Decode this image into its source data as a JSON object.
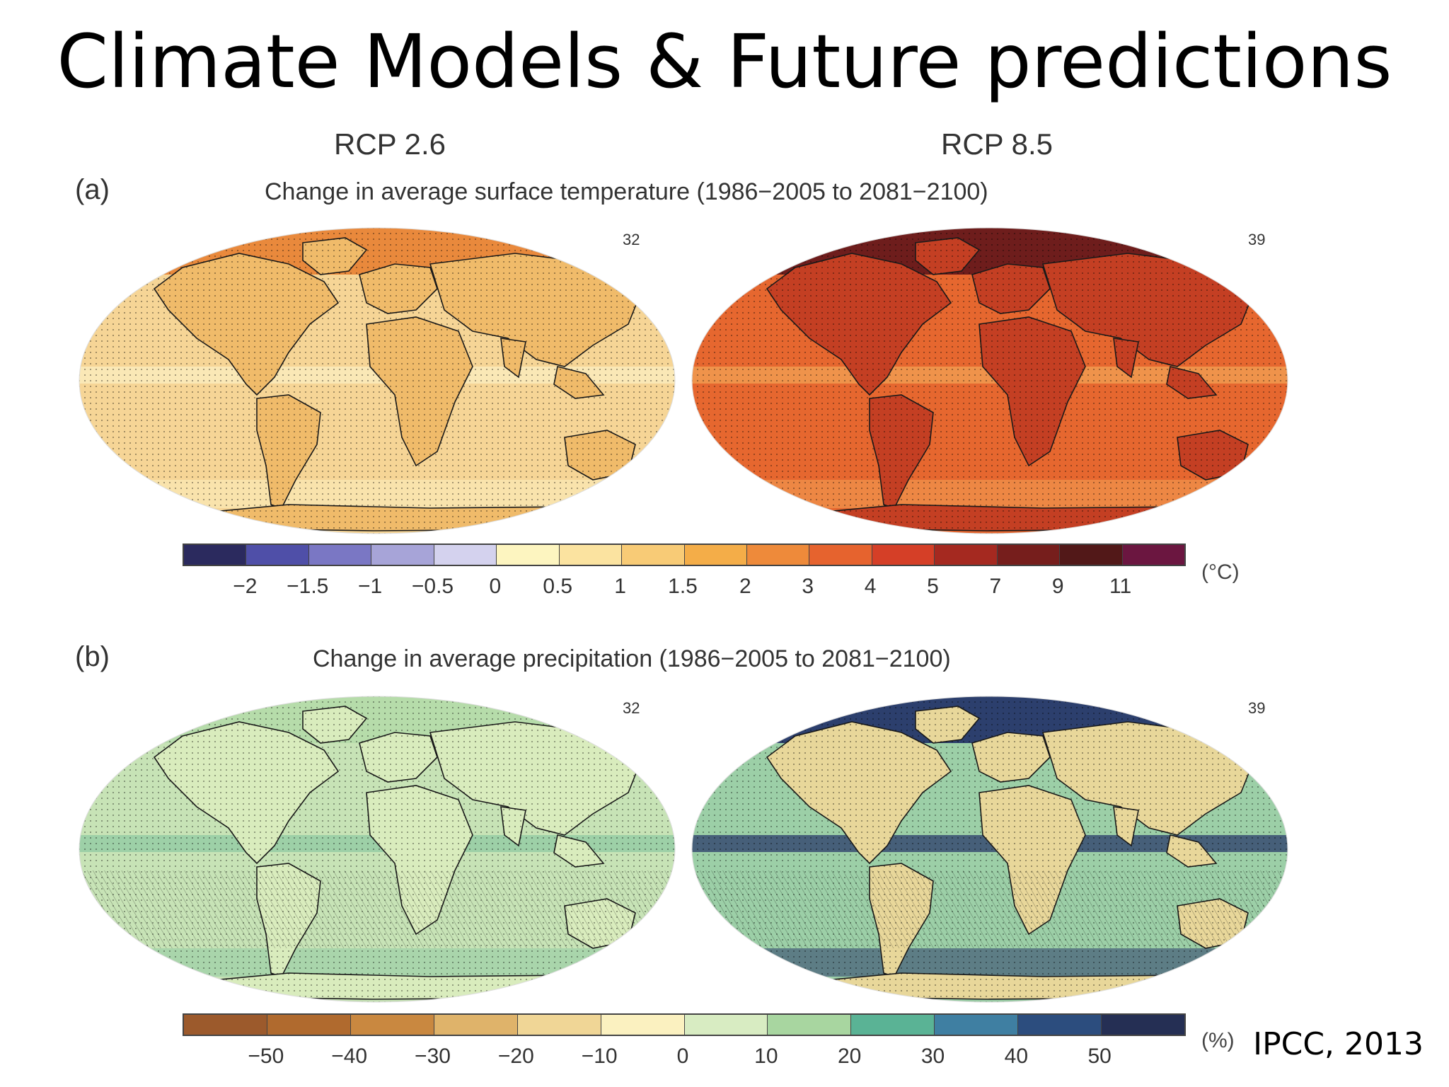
{
  "slide": {
    "title": "Climate Models & Future predictions",
    "credit": "IPCC, 2013"
  },
  "columns": [
    "RCP 2.6",
    "RCP 8.5"
  ],
  "panel_a": {
    "letter": "(a)",
    "title": "Change in average surface temperature (1986−2005 to 2081−2100)",
    "model_counts": [
      "32",
      "39"
    ],
    "unit": "(°C)",
    "colorbar": {
      "colors": [
        "#2b2a5e",
        "#4f4fa8",
        "#7a77c4",
        "#a7a4d8",
        "#d4d2ee",
        "#fdf5c0",
        "#fbe3a0",
        "#f8cb76",
        "#f4ad48",
        "#ee8a3a",
        "#e6632e",
        "#d53f27",
        "#a52920",
        "#761e1c",
        "#521818",
        "#6b1640"
      ],
      "tick_labels": [
        "−2",
        "−1.5",
        "−1",
        "−0.5",
        "0",
        "0.5",
        "1",
        "1.5",
        "2",
        "3",
        "4",
        "5",
        "7",
        "9",
        "11"
      ]
    }
  },
  "panel_b": {
    "letter": "(b)",
    "title": "Change in average precipitation (1986−2005 to 2081−2100)",
    "model_counts": [
      "32",
      "39"
    ],
    "unit": "(%)",
    "colorbar": {
      "colors": [
        "#9c5a2c",
        "#b06a2e",
        "#c98840",
        "#dfb36a",
        "#f0d696",
        "#fbf1c0",
        "#d8ecc2",
        "#a8d6a0",
        "#5ab395",
        "#3f7fa2",
        "#2c4d7e",
        "#252f54"
      ],
      "tick_labels": [
        "−50",
        "−40",
        "−30",
        "−20",
        "−10",
        "0",
        "10",
        "20",
        "30",
        "40",
        "50"
      ]
    }
  },
  "maps": {
    "temp_rcp26": {
      "ocean": "#f6d596",
      "land": "#f0bb6a",
      "arctic": "#e9893c",
      "patch": "#fbeec0"
    },
    "temp_rcp85": {
      "ocean": "#e6672f",
      "land": "#c43f23",
      "arctic": "#6e1d1c",
      "patch": "#f2a256"
    },
    "precip_rcp26": {
      "ocean": "#c7e3b6",
      "land": "#d9ecbd",
      "arctic": "#b6dcaa",
      "patch": "#8fcaa2"
    },
    "precip_rcp85": {
      "ocean": "#9ccfa7",
      "land": "#e8d79a",
      "arctic": "#2c3f6d",
      "patch": "#2a3a6a"
    }
  }
}
